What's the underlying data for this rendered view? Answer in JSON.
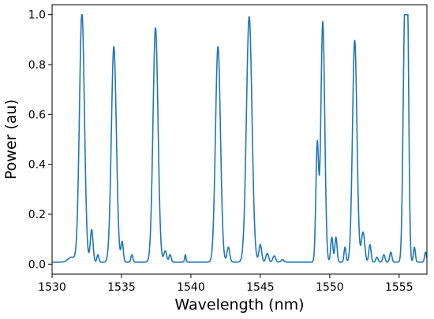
{
  "chart_data": {
    "type": "line",
    "xlabel": "Wavelength (nm)",
    "ylabel": "Power (au)",
    "xlim": [
      1530,
      1557
    ],
    "ylim": [
      -0.04,
      1.04
    ],
    "xticks": [
      1530,
      1535,
      1540,
      1545,
      1550,
      1555
    ],
    "yticks": [
      0.0,
      0.2,
      0.4,
      0.6,
      0.8,
      1.0
    ],
    "xtick_labels": [
      "1530",
      "1535",
      "1540",
      "1545",
      "1550",
      "1555"
    ],
    "ytick_labels": [
      "0.0",
      "0.2",
      "0.4",
      "0.6",
      "0.8",
      "1.0"
    ],
    "grid": false,
    "series": [
      {
        "color": "#1f77b4",
        "baseline": 0.008,
        "peaks": [
          {
            "center": 1531.4,
            "amp": 0.02,
            "width": 0.25
          },
          {
            "center": 1532.15,
            "amp": 1.0,
            "width": 0.18
          },
          {
            "center": 1532.85,
            "amp": 0.13,
            "width": 0.1
          },
          {
            "center": 1533.3,
            "amp": 0.03,
            "width": 0.07
          },
          {
            "center": 1534.45,
            "amp": 0.865,
            "width": 0.18
          },
          {
            "center": 1535.05,
            "amp": 0.08,
            "width": 0.08
          },
          {
            "center": 1535.75,
            "amp": 0.03,
            "width": 0.07
          },
          {
            "center": 1537.45,
            "amp": 0.94,
            "width": 0.18
          },
          {
            "center": 1538.15,
            "amp": 0.045,
            "width": 0.1
          },
          {
            "center": 1538.5,
            "amp": 0.03,
            "width": 0.08
          },
          {
            "center": 1539.6,
            "amp": 0.03,
            "width": 0.05
          },
          {
            "center": 1541.95,
            "amp": 0.865,
            "width": 0.18
          },
          {
            "center": 1542.7,
            "amp": 0.06,
            "width": 0.1
          },
          {
            "center": 1544.2,
            "amp": 0.985,
            "width": 0.2
          },
          {
            "center": 1545.0,
            "amp": 0.07,
            "width": 0.1
          },
          {
            "center": 1545.5,
            "amp": 0.035,
            "width": 0.1
          },
          {
            "center": 1546.0,
            "amp": 0.025,
            "width": 0.1
          },
          {
            "center": 1546.6,
            "amp": 0.01,
            "width": 0.1
          },
          {
            "center": 1549.1,
            "amp": 0.47,
            "width": 0.1
          },
          {
            "center": 1549.5,
            "amp": 0.965,
            "width": 0.14
          },
          {
            "center": 1550.15,
            "amp": 0.1,
            "width": 0.08
          },
          {
            "center": 1550.45,
            "amp": 0.1,
            "width": 0.08
          },
          {
            "center": 1551.1,
            "amp": 0.06,
            "width": 0.07
          },
          {
            "center": 1551.8,
            "amp": 0.89,
            "width": 0.16
          },
          {
            "center": 1552.4,
            "amp": 0.12,
            "width": 0.12
          },
          {
            "center": 1552.9,
            "amp": 0.07,
            "width": 0.08
          },
          {
            "center": 1553.4,
            "amp": 0.02,
            "width": 0.08
          },
          {
            "center": 1553.9,
            "amp": 0.03,
            "width": 0.08
          },
          {
            "center": 1554.4,
            "amp": 0.04,
            "width": 0.08
          },
          {
            "center": 1555.4,
            "amp": 0.93,
            "width": 0.12
          },
          {
            "center": 1555.6,
            "amp": 0.92,
            "width": 0.1
          },
          {
            "center": 1556.1,
            "amp": 0.06,
            "width": 0.07
          },
          {
            "center": 1556.9,
            "amp": 0.04,
            "width": 0.07
          }
        ]
      }
    ]
  }
}
